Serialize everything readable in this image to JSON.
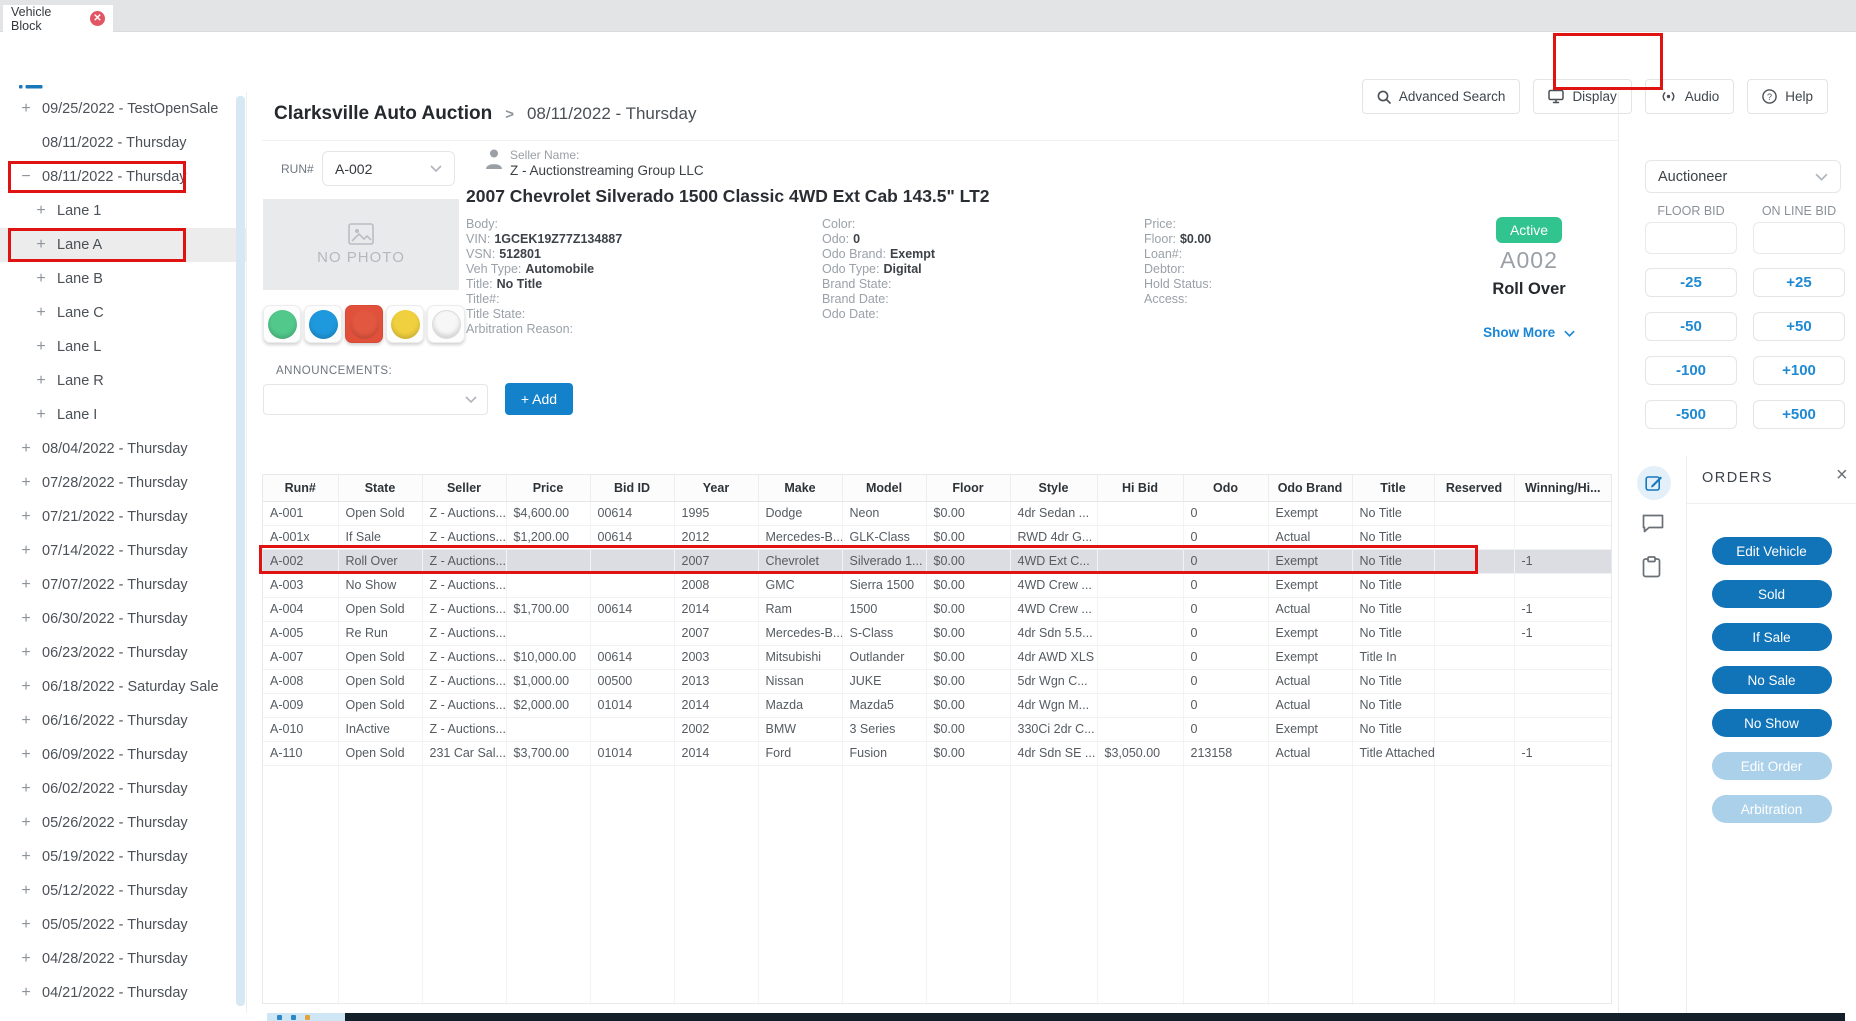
{
  "tab_bar": {
    "active_tab": "Vehicle Block"
  },
  "toolbar": {
    "advanced_search_label": "Advanced Search",
    "display_label": "Display",
    "audio_label": "Audio",
    "help_label": "Help"
  },
  "sidebar": {
    "items": [
      {
        "label": "09/25/2022 - TestOpenSale",
        "prefix": "plus",
        "indent": 0
      },
      {
        "label": "08/11/2022 - Thursday",
        "prefix": "none",
        "indent": 0
      },
      {
        "label": "08/11/2022 - Thursday",
        "prefix": "minus",
        "indent": 0,
        "annotated": true
      },
      {
        "label": "Lane 1",
        "prefix": "plus",
        "indent": 1
      },
      {
        "label": "Lane A",
        "prefix": "plus",
        "indent": 1,
        "selected": true,
        "annotated": true
      },
      {
        "label": "Lane B",
        "prefix": "plus",
        "indent": 1
      },
      {
        "label": "Lane C",
        "prefix": "plus",
        "indent": 1
      },
      {
        "label": "Lane L",
        "prefix": "plus",
        "indent": 1
      },
      {
        "label": "Lane R",
        "prefix": "plus",
        "indent": 1
      },
      {
        "label": "Lane I",
        "prefix": "plus",
        "indent": 1
      },
      {
        "label": "08/04/2022 - Thursday",
        "prefix": "plus",
        "indent": 0
      },
      {
        "label": "07/28/2022 - Thursday",
        "prefix": "plus",
        "indent": 0
      },
      {
        "label": "07/21/2022 - Thursday",
        "prefix": "plus",
        "indent": 0
      },
      {
        "label": "07/14/2022 - Thursday",
        "prefix": "plus",
        "indent": 0
      },
      {
        "label": "07/07/2022 - Thursday",
        "prefix": "plus",
        "indent": 0
      },
      {
        "label": "06/30/2022 - Thursday",
        "prefix": "plus",
        "indent": 0
      },
      {
        "label": "06/23/2022 - Thursday",
        "prefix": "plus",
        "indent": 0
      },
      {
        "label": "06/18/2022 - Saturday Sale",
        "prefix": "plus",
        "indent": 0
      },
      {
        "label": "06/16/2022 - Thursday",
        "prefix": "plus",
        "indent": 0
      },
      {
        "label": "06/09/2022 - Thursday",
        "prefix": "plus",
        "indent": 0
      },
      {
        "label": "06/02/2022 - Thursday",
        "prefix": "plus",
        "indent": 0
      },
      {
        "label": "05/26/2022 - Thursday",
        "prefix": "plus",
        "indent": 0
      },
      {
        "label": "05/19/2022 - Thursday",
        "prefix": "plus",
        "indent": 0
      },
      {
        "label": "05/12/2022 - Thursday",
        "prefix": "plus",
        "indent": 0
      },
      {
        "label": "05/05/2022 - Thursday",
        "prefix": "plus",
        "indent": 0
      },
      {
        "label": "04/28/2022 - Thursday",
        "prefix": "plus",
        "indent": 0
      },
      {
        "label": "04/21/2022 - Thursday",
        "prefix": "plus",
        "indent": 0
      }
    ]
  },
  "breadcrumb": {
    "auction": "Clarksville Auto Auction",
    "separator": ">",
    "date": "08/11/2022 - Thursday"
  },
  "vehicle": {
    "run_label": "RUN#",
    "run_value": "A-002",
    "no_photo_text": "NO PHOTO",
    "seller_label": "Seller Name:",
    "seller_name": "Z - Auctionstreaming Group LLC",
    "title": "2007 Chevrolet Silverado 1500 Classic 4WD Ext Cab 143.5\" LT2",
    "details_left": [
      {
        "label": "Body:",
        "value": ""
      },
      {
        "label": "VIN:",
        "value": "1GCEK19Z77Z134887"
      },
      {
        "label": "VSN:",
        "value": "512801"
      },
      {
        "label": "Veh Type:",
        "value": "Automobile"
      },
      {
        "label": "Title:",
        "value": "No Title"
      },
      {
        "label": "Title#:",
        "value": ""
      },
      {
        "label": "Title State:",
        "value": ""
      },
      {
        "label": "Arbitration Reason:",
        "value": ""
      }
    ],
    "details_mid": [
      {
        "label": "Color:",
        "value": ""
      },
      {
        "label": "Odo:",
        "value": "0"
      },
      {
        "label": "Odo Brand:",
        "value": "Exempt"
      },
      {
        "label": "Odo Type:",
        "value": "Digital"
      },
      {
        "label": "Brand State:",
        "value": ""
      },
      {
        "label": "Brand Date:",
        "value": ""
      },
      {
        "label": "Odo Date:",
        "value": ""
      }
    ],
    "details_right": [
      {
        "label": "Price:",
        "value": ""
      },
      {
        "label": "Floor:",
        "value": "$0.00"
      },
      {
        "label": "Loan#:",
        "value": ""
      },
      {
        "label": "Debtor:",
        "value": ""
      },
      {
        "label": "Hold Status:",
        "value": ""
      },
      {
        "label": "Access:",
        "value": ""
      }
    ],
    "status_badge": "Active",
    "run_number": "A002",
    "state": "Roll Over",
    "show_more_label": "Show More",
    "announcements_label": "ANNOUNCEMENTS:",
    "announcements_value": "",
    "add_button_label": "+ Add",
    "status_lights": [
      {
        "name": "green",
        "color": "#52c98b",
        "selected": false
      },
      {
        "name": "blue",
        "color": "#1f99dd",
        "selected": false
      },
      {
        "name": "red",
        "color": "#e2573f",
        "selected": true
      },
      {
        "name": "yellow",
        "color": "#f0d03e",
        "selected": false
      },
      {
        "name": "white",
        "color": "#f7f7f7",
        "selected": false
      }
    ]
  },
  "bid_panel": {
    "auctioneer_value": "Auctioneer",
    "floor_bid_label": "FLOOR BID",
    "online_bid_label": "ON LINE BID",
    "floor_bid_value": "",
    "online_bid_value": "",
    "buttons": [
      {
        "down": "-25",
        "up": "+25"
      },
      {
        "down": "-50",
        "up": "+50"
      },
      {
        "down": "-100",
        "up": "+100"
      },
      {
        "down": "-500",
        "up": "+500"
      }
    ]
  },
  "orders": {
    "title": "ORDERS",
    "close": "×",
    "actions": [
      {
        "label": "Edit Vehicle",
        "enabled": true
      },
      {
        "label": "Sold",
        "enabled": true
      },
      {
        "label": "If Sale",
        "enabled": true
      },
      {
        "label": "No Sale",
        "enabled": true
      },
      {
        "label": "No Show",
        "enabled": true
      },
      {
        "label": "Edit Order",
        "enabled": false
      },
      {
        "label": "Arbitration",
        "enabled": false
      }
    ]
  },
  "table": {
    "columns": [
      "Run#",
      "State",
      "Seller",
      "Price",
      "Bid ID",
      "Year",
      "Make",
      "Model",
      "Floor",
      "Style",
      "Hi Bid",
      "Odo",
      "Odo Brand",
      "Title",
      "Reserved",
      "Winning/Hi..."
    ],
    "selected_row_index": 2,
    "rows": [
      [
        "A-001",
        "Open Sold",
        "Z - Auctions...",
        "$4,600.00",
        "00614",
        "1995",
        "Dodge",
        "Neon",
        "$0.00",
        "4dr Sedan ...",
        "",
        "0",
        "Exempt",
        "No Title",
        "",
        ""
      ],
      [
        "A-001x",
        "If Sale",
        "Z - Auctions...",
        "$1,200.00",
        "00614",
        "2012",
        "Mercedes-B...",
        "GLK-Class",
        "$0.00",
        "RWD 4dr G...",
        "",
        "0",
        "Actual",
        "No Title",
        "",
        ""
      ],
      [
        "A-002",
        "Roll Over",
        "Z - Auctions...",
        "",
        "",
        "2007",
        "Chevrolet",
        "Silverado 1...",
        "$0.00",
        "4WD Ext C...",
        "",
        "0",
        "Exempt",
        "No Title",
        "",
        "-1"
      ],
      [
        "A-003",
        "No Show",
        "Z - Auctions...",
        "",
        "",
        "2008",
        "GMC",
        "Sierra 1500",
        "$0.00",
        "4WD Crew ...",
        "",
        "0",
        "Exempt",
        "No Title",
        "",
        ""
      ],
      [
        "A-004",
        "Open Sold",
        "Z - Auctions...",
        "$1,700.00",
        "00614",
        "2014",
        "Ram",
        "1500",
        "$0.00",
        "4WD Crew ...",
        "",
        "0",
        "Actual",
        "No Title",
        "",
        "-1"
      ],
      [
        "A-005",
        "Re Run",
        "Z - Auctions...",
        "",
        "",
        "2007",
        "Mercedes-B...",
        "S-Class",
        "$0.00",
        "4dr Sdn 5.5...",
        "",
        "0",
        "Exempt",
        "No Title",
        "",
        "-1"
      ],
      [
        "A-007",
        "Open Sold",
        "Z - Auctions...",
        "$10,000.00",
        "00614",
        "2003",
        "Mitsubishi",
        "Outlander",
        "$0.00",
        "4dr AWD XLS",
        "",
        "0",
        "Exempt",
        "Title In",
        "",
        ""
      ],
      [
        "A-008",
        "Open Sold",
        "Z - Auctions...",
        "$1,000.00",
        "00500",
        "2013",
        "Nissan",
        "JUKE",
        "$0.00",
        "5dr Wgn C...",
        "",
        "0",
        "Actual",
        "No Title",
        "",
        ""
      ],
      [
        "A-009",
        "Open Sold",
        "Z - Auctions...",
        "$2,000.00",
        "01014",
        "2014",
        "Mazda",
        "Mazda5",
        "$0.00",
        "4dr Wgn M...",
        "",
        "0",
        "Actual",
        "No Title",
        "",
        ""
      ],
      [
        "A-010",
        "InActive",
        "Z - Auctions...",
        "",
        "",
        "2002",
        "BMW",
        "3 Series",
        "$0.00",
        "330Ci 2dr C...",
        "",
        "0",
        "Exempt",
        "No Title",
        "",
        ""
      ],
      [
        "A-110",
        "Open Sold",
        "231 Car Sal...",
        "$3,700.00",
        "01014",
        "2014",
        "Ford",
        "Fusion",
        "$0.00",
        "4dr Sdn SE ...",
        "$3,050.00",
        "213158",
        "Actual",
        "Title Attached",
        "",
        "-1"
      ]
    ]
  },
  "colors": {
    "accent_blue": "#1482cb",
    "orders_button_blue": "#1173b8",
    "disabled_button_blue": "#abd0ea",
    "link_blue": "#1a87d6",
    "active_badge_green": "#31c48f",
    "annotation_red": "#e01313",
    "tab_close_red": "#e25563",
    "selected_row_gray": "#dcdde2"
  }
}
